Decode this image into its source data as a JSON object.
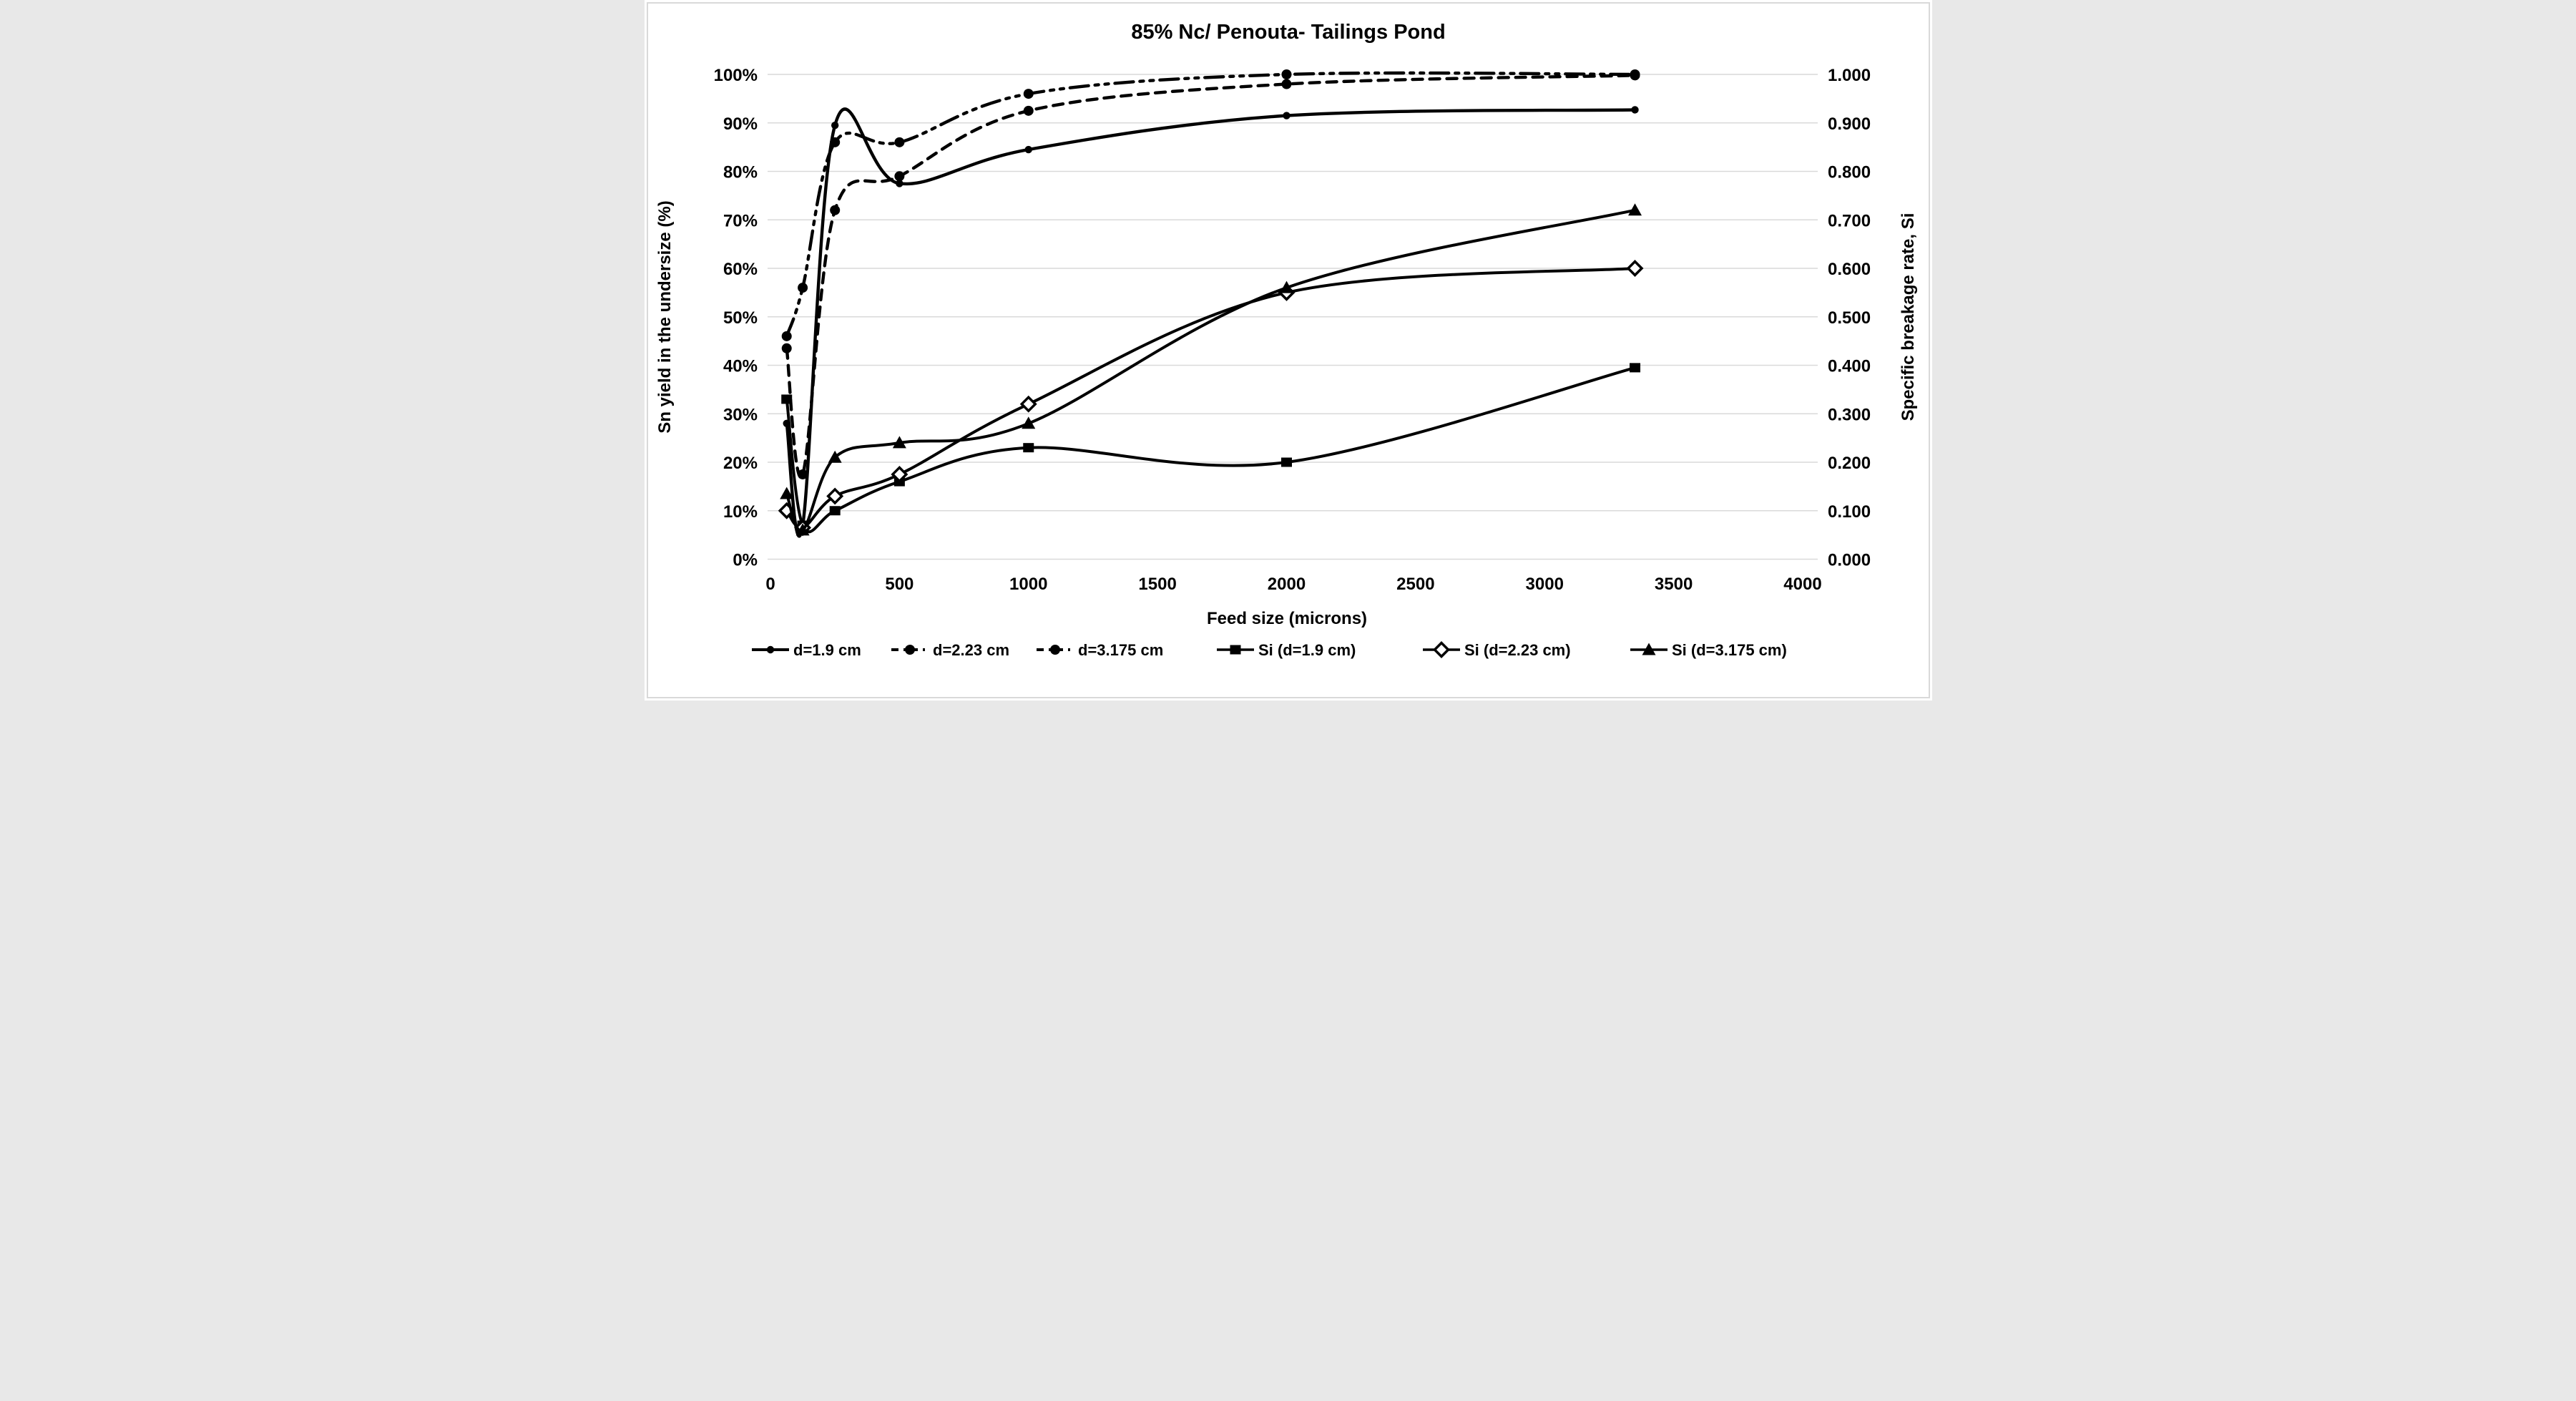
{
  "chart_data": {
    "type": "line",
    "title": "85% Nc/ Penouta- Tailings Pond",
    "xlabel": "Feed size (microns)",
    "ylabel_left": "Sn yield in the undersize (%)",
    "ylabel_right": "Specific breakage rate, Si",
    "x_range": [
      0,
      4000
    ],
    "x_ticks": [
      "0",
      "500",
      "1000",
      "1500",
      "2000",
      "2500",
      "3000",
      "3500",
      "4000"
    ],
    "x_tick_values": [
      0,
      500,
      1000,
      1500,
      2000,
      2500,
      3000,
      3500,
      4000
    ],
    "left_axis": {
      "range": [
        0,
        100
      ],
      "ticks": [
        "0%",
        "10%",
        "20%",
        "30%",
        "40%",
        "50%",
        "60%",
        "70%",
        "80%",
        "90%",
        "100%"
      ]
    },
    "right_axis": {
      "range": [
        0,
        1
      ],
      "ticks": [
        "0.000",
        "0.100",
        "0.200",
        "0.300",
        "0.400",
        "0.500",
        "0.600",
        "0.700",
        "0.800",
        "0.900",
        "1.000"
      ]
    },
    "grid": "horizontal",
    "legend_position": "bottom",
    "series": [
      {
        "name": "d=1.9 cm",
        "axis": "left",
        "line": "solid",
        "marker": "circle-small",
        "points": [
          [
            63,
            28
          ],
          [
            125,
            7
          ],
          [
            250,
            89.5
          ],
          [
            500,
            77.5
          ],
          [
            1000,
            84.5
          ],
          [
            2000,
            91.5
          ],
          [
            3350,
            92.7
          ]
        ]
      },
      {
        "name": "d=2.23 cm",
        "axis": "left",
        "line": "dashed",
        "marker": "circle",
        "points": [
          [
            63,
            43.5
          ],
          [
            125,
            17.5
          ],
          [
            250,
            72
          ],
          [
            500,
            79
          ],
          [
            1000,
            92.5
          ],
          [
            2000,
            98
          ],
          [
            3350,
            99.8
          ]
        ]
      },
      {
        "name": "d=3.175 cm",
        "axis": "left",
        "line": "dash-dot-dot",
        "marker": "circle",
        "points": [
          [
            63,
            46
          ],
          [
            125,
            56
          ],
          [
            250,
            86
          ],
          [
            500,
            86
          ],
          [
            1000,
            96
          ],
          [
            2000,
            100
          ],
          [
            3350,
            100
          ]
        ]
      },
      {
        "name": "Si (d=1.9 cm)",
        "axis": "right",
        "line": "solid",
        "marker": "square",
        "points": [
          [
            63,
            0.33
          ],
          [
            125,
            0.07
          ],
          [
            250,
            0.1
          ],
          [
            500,
            0.16
          ],
          [
            1000,
            0.23
          ],
          [
            2000,
            0.2
          ],
          [
            3350,
            0.395
          ]
        ]
      },
      {
        "name": "Si (d=2.23 cm)",
        "axis": "right",
        "line": "solid",
        "marker": "diamond-open",
        "points": [
          [
            63,
            0.1
          ],
          [
            125,
            0.065
          ],
          [
            250,
            0.13
          ],
          [
            500,
            0.175
          ],
          [
            1000,
            0.32
          ],
          [
            2000,
            0.55
          ],
          [
            3350,
            0.6
          ]
        ]
      },
      {
        "name": "Si (d=3.175 cm)",
        "axis": "right",
        "line": "solid",
        "marker": "triangle",
        "points": [
          [
            63,
            0.135
          ],
          [
            125,
            0.06
          ],
          [
            250,
            0.21
          ],
          [
            500,
            0.24
          ],
          [
            1000,
            0.28
          ],
          [
            2000,
            0.56
          ],
          [
            3350,
            0.72
          ]
        ]
      }
    ]
  },
  "colors": {
    "line": "#000000",
    "grid": "#d9d9d9",
    "border": "#d9d9d9",
    "background": "#ffffff",
    "text": "#000000"
  }
}
